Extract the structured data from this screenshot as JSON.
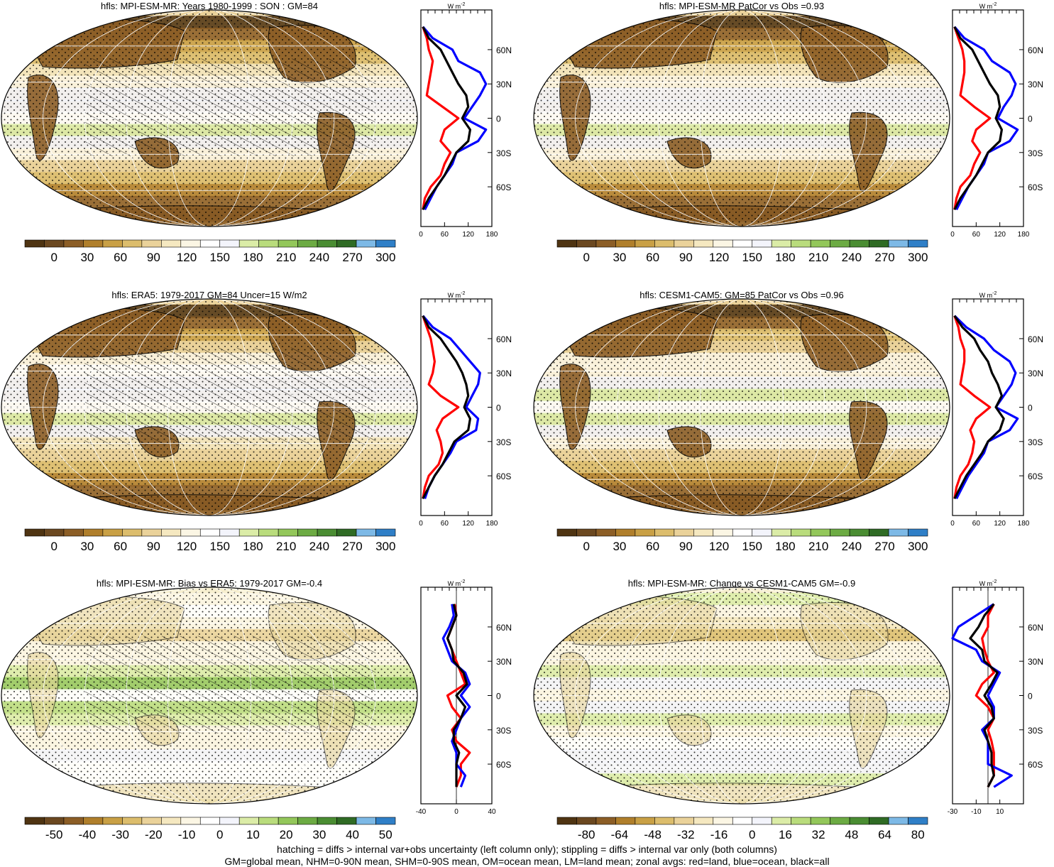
{
  "panels": [
    {
      "title": "hfls: MPI-ESM-MR: Years 1980-1999 : SON : GM=84",
      "kind": "clim",
      "hatch": true
    },
    {
      "title": "hfls: MPI-ESM-MR PatCor vs Obs =0.93",
      "kind": "clim",
      "hatch": false
    },
    {
      "title": "hfls: ERA5: 1979-2017 GM=84 Uncer=15 W/m2",
      "kind": "clim",
      "hatch": true
    },
    {
      "title": "hfls: CESM1-CAM5: GM=85 PatCor vs Obs =0.96",
      "kind": "clim",
      "hatch": false
    },
    {
      "title": "hfls: MPI-ESM-MR: Bias vs ERA5: 1979-2017  GM=-0.4",
      "kind": "diff",
      "hatch": true
    },
    {
      "title": "hfls: MPI-ESM-MR: Change vs CESM1-CAM5 GM=-0.9",
      "kind": "diff",
      "hatch": false
    }
  ],
  "colorbars": {
    "clim": {
      "labels": [
        "0",
        "30",
        "60",
        "90",
        "120",
        "150",
        "180",
        "210",
        "240",
        "270",
        "300"
      ]
    },
    "bias": {
      "labels": [
        "-50",
        "-40",
        "-30",
        "-20",
        "-10",
        "0",
        "10",
        "20",
        "30",
        "40",
        "50"
      ]
    },
    "change": {
      "labels": [
        "-80",
        "-64",
        "-48",
        "-32",
        "-16",
        "0",
        "16",
        "32",
        "48",
        "64",
        "80"
      ]
    }
  },
  "palette": [
    "#4f3412",
    "#6b4820",
    "#8c5e26",
    "#b07f2b",
    "#c9a045",
    "#dcbd6c",
    "#ead29a",
    "#f5e8c0",
    "#fbf6e4",
    "#ffffff",
    "#f3f4fb",
    "#dbeca7",
    "#b9dc7c",
    "#93c75a",
    "#6cab43",
    "#4a8d32",
    "#2f6b24",
    "#7db9e6",
    "#2f7fc7"
  ],
  "zonal": {
    "unit_label": "W m",
    "unit_sup": "-2",
    "lat_ticks": [
      "60N",
      "30N",
      "0",
      "30S",
      "60S"
    ],
    "clim_ticks": [
      "0",
      "60",
      "120",
      "180"
    ],
    "bias_ticks": [
      "-40",
      "0",
      "40"
    ],
    "change_ticks": [
      "-30",
      "-10",
      "10"
    ],
    "series_colors": {
      "land": "#ff0000",
      "ocean": "#0000ff",
      "all": "#000000"
    }
  },
  "footer": {
    "line1": "hatching = diffs > internal var+obs uncertainty (left column only); stippling = diffs > internal var only (both columns)",
    "line2": "GM=global mean, NHM=0-90N mean, SHM=0-90S mean, OM=ocean mean, LM=land mean; zonal avgs: red=land, blue=ocean, black=all"
  },
  "chart_data": [
    {
      "type": "heatmap",
      "title": "hfls: MPI-ESM-MR: Years 1980-1999 : SON : GM=84",
      "colorbar": [
        0,
        30,
        60,
        90,
        120,
        150,
        180,
        210,
        240,
        270,
        300
      ],
      "zonal_mean": {
        "lat": [
          80,
          70,
          60,
          50,
          40,
          30,
          20,
          10,
          0,
          -10,
          -20,
          -30,
          -40,
          -50,
          -60,
          -70,
          -80
        ],
        "series": [
          {
            "name": "land",
            "values": [
              5,
              15,
              20,
              30,
              25,
              20,
              15,
              55,
              95,
              60,
              50,
              75,
              60,
              50,
              25,
              10,
              5
            ]
          },
          {
            "name": "ocean",
            "values": [
              5,
              30,
              80,
              95,
              150,
              165,
              150,
              130,
              110,
              165,
              145,
              90,
              80,
              60,
              40,
              25,
              10
            ]
          },
          {
            "name": "all",
            "values": [
              5,
              20,
              50,
              65,
              80,
              95,
              115,
              120,
              105,
              125,
              120,
              90,
              75,
              60,
              40,
              20,
              5
            ]
          }
        ]
      }
    },
    {
      "type": "heatmap",
      "title": "hfls: MPI-ESM-MR PatCor vs Obs =0.93",
      "colorbar": [
        0,
        30,
        60,
        90,
        120,
        150,
        180,
        210,
        240,
        270,
        300
      ],
      "zonal_mean": {
        "lat": [
          80,
          70,
          60,
          50,
          40,
          30,
          20,
          10,
          0,
          -10,
          -20,
          -30,
          -40,
          -50,
          -60,
          -70,
          -80
        ],
        "series": [
          {
            "name": "land",
            "values": [
              5,
              15,
              25,
              30,
              30,
              25,
              20,
              55,
              95,
              60,
              50,
              70,
              55,
              45,
              20,
              10,
              5
            ]
          },
          {
            "name": "ocean",
            "values": [
              5,
              30,
              80,
              100,
              145,
              160,
              150,
              130,
              115,
              165,
              145,
              90,
              80,
              60,
              40,
              25,
              10
            ]
          },
          {
            "name": "all",
            "values": [
              5,
              20,
              50,
              65,
              80,
              95,
              115,
              120,
              110,
              125,
              120,
              90,
              75,
              60,
              40,
              20,
              5
            ]
          }
        ]
      }
    },
    {
      "type": "heatmap",
      "title": "hfls: ERA5: 1979-2017 GM=84 Uncer=15 W/m2",
      "colorbar": [
        0,
        30,
        60,
        90,
        120,
        150,
        180,
        210,
        240,
        270,
        300
      ],
      "zonal_mean": {
        "lat": [
          80,
          70,
          60,
          50,
          40,
          30,
          20,
          10,
          0,
          -10,
          -20,
          -30,
          -40,
          -50,
          -60,
          -70,
          -80
        ],
        "series": [
          {
            "name": "land",
            "values": [
              5,
              15,
              25,
              30,
              35,
              30,
              20,
              50,
              95,
              55,
              40,
              50,
              55,
              45,
              20,
              10,
              5
            ]
          },
          {
            "name": "ocean",
            "values": [
              5,
              30,
              75,
              100,
              125,
              150,
              145,
              130,
              115,
              145,
              140,
              90,
              75,
              55,
              35,
              20,
              10
            ]
          },
          {
            "name": "all",
            "values": [
              5,
              20,
              50,
              70,
              90,
              105,
              115,
              120,
              110,
              125,
              120,
              85,
              70,
              55,
              35,
              20,
              5
            ]
          }
        ]
      }
    },
    {
      "type": "heatmap",
      "title": "hfls: CESM1-CAM5: GM=85 PatCor vs Obs =0.96",
      "colorbar": [
        0,
        30,
        60,
        90,
        120,
        150,
        180,
        210,
        240,
        270,
        300
      ],
      "zonal_mean": {
        "lat": [
          80,
          70,
          60,
          50,
          40,
          30,
          20,
          10,
          0,
          -10,
          -20,
          -30,
          -40,
          -50,
          -60,
          -70,
          -80
        ],
        "series": [
          {
            "name": "land",
            "values": [
              5,
              15,
              20,
              30,
              30,
              25,
              20,
              55,
              95,
              60,
              45,
              55,
              50,
              40,
              20,
              10,
              5
            ]
          },
          {
            "name": "ocean",
            "values": [
              5,
              35,
              80,
              105,
              145,
              160,
              150,
              130,
              110,
              165,
              145,
              90,
              80,
              60,
              40,
              25,
              10
            ]
          },
          {
            "name": "all",
            "values": [
              5,
              25,
              55,
              70,
              90,
              100,
              115,
              125,
              110,
              130,
              120,
              90,
              75,
              55,
              35,
              20,
              5
            ]
          }
        ]
      }
    },
    {
      "type": "heatmap",
      "title": "hfls: MPI-ESM-MR: Bias vs ERA5: 1979-2017  GM=-0.4",
      "colorbar": [
        -50,
        -40,
        -30,
        -20,
        -10,
        0,
        10,
        20,
        30,
        40,
        50
      ],
      "zonal_mean": {
        "lat": [
          80,
          70,
          60,
          50,
          40,
          30,
          20,
          10,
          0,
          -10,
          -20,
          -30,
          -40,
          -50,
          -60,
          -70,
          -80
        ],
        "series": [
          {
            "name": "land",
            "values": [
              -2,
              0,
              -5,
              -10,
              -5,
              0,
              5,
              10,
              -10,
              -5,
              5,
              -5,
              0,
              15,
              5,
              5,
              0
            ]
          },
          {
            "name": "ocean",
            "values": [
              -5,
              -3,
              -8,
              -15,
              -10,
              -5,
              10,
              15,
              5,
              15,
              5,
              0,
              -5,
              0,
              0,
              10,
              5
            ]
          },
          {
            "name": "all",
            "values": [
              -3,
              0,
              -5,
              -10,
              -5,
              -3,
              8,
              12,
              0,
              10,
              5,
              -3,
              -3,
              3,
              0,
              0,
              0
            ]
          }
        ]
      }
    },
    {
      "type": "heatmap",
      "title": "hfls: MPI-ESM-MR: Change vs CESM1-CAM5 GM=-0.9",
      "colorbar": [
        -80,
        -64,
        -48,
        -32,
        -16,
        0,
        16,
        32,
        48,
        64,
        80
      ],
      "zonal_mean": {
        "lat": [
          80,
          70,
          60,
          50,
          40,
          30,
          20,
          10,
          0,
          -10,
          -20,
          -30,
          -40,
          -50,
          -60,
          -70,
          -80
        ],
        "series": [
          {
            "name": "land",
            "values": [
              5,
              0,
              0,
              -5,
              -3,
              0,
              5,
              -5,
              -10,
              0,
              5,
              0,
              3,
              5,
              5,
              5,
              0
            ]
          },
          {
            "name": "ocean",
            "values": [
              5,
              -10,
              -25,
              -30,
              -10,
              -5,
              10,
              5,
              0,
              5,
              5,
              -5,
              0,
              0,
              0,
              20,
              5
            ]
          },
          {
            "name": "all",
            "values": [
              5,
              -3,
              -8,
              -15,
              -5,
              -3,
              8,
              3,
              -3,
              3,
              5,
              -3,
              0,
              3,
              3,
              5,
              0
            ]
          }
        ]
      }
    }
  ]
}
